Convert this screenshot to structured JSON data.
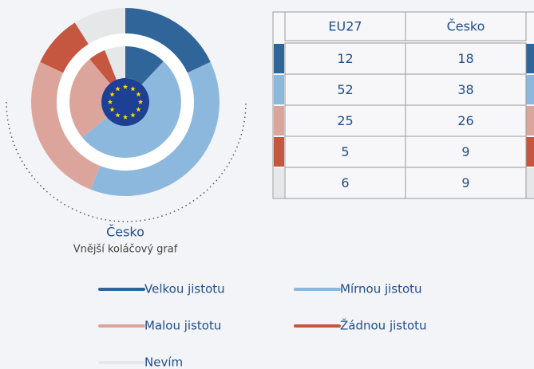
{
  "chart_data": {
    "type": "donut",
    "title": "Česko",
    "subtitle": "Vnější koláčový graf",
    "categories": [
      "Velkou jistotu",
      "Mírnou jistotu",
      "Malou jistotu",
      "Žádnou jistotu",
      "Nevím"
    ],
    "colors": [
      "#2f6599",
      "#8db8dd",
      "#dca59c",
      "#c5563f",
      "#e6e7e8"
    ],
    "series": [
      {
        "name": "EU27",
        "values": [
          12,
          52,
          25,
          5,
          6
        ]
      },
      {
        "name": "Česko",
        "values": [
          18,
          38,
          26,
          9,
          9
        ]
      }
    ]
  }
}
